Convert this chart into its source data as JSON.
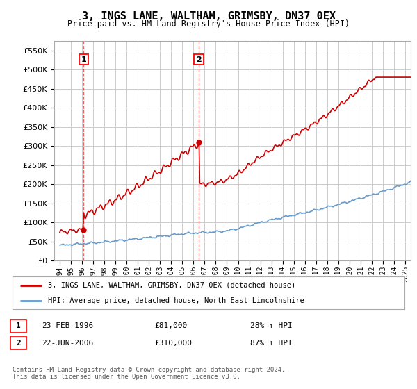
{
  "title": "3, INGS LANE, WALTHAM, GRIMSBY, DN37 0EX",
  "subtitle": "Price paid vs. HM Land Registry's House Price Index (HPI)",
  "legend_line1": "3, INGS LANE, WALTHAM, GRIMSBY, DN37 0EX (detached house)",
  "legend_line2": "HPI: Average price, detached house, North East Lincolnshire",
  "sale1_date": "23-FEB-1996",
  "sale1_price": "£81,000",
  "sale1_hpi": "28% ↑ HPI",
  "sale2_date": "22-JUN-2006",
  "sale2_price": "£310,000",
  "sale2_hpi": "87% ↑ HPI",
  "footer": "Contains HM Land Registry data © Crown copyright and database right 2024.\nThis data is licensed under the Open Government Licence v3.0.",
  "property_color": "#cc0000",
  "hpi_color": "#6699cc",
  "background_color": "#ffffff",
  "grid_color": "#cccccc",
  "ylim": [
    0,
    575000
  ],
  "yticks": [
    0,
    50000,
    100000,
    150000,
    200000,
    250000,
    300000,
    350000,
    400000,
    450000,
    500000,
    550000
  ],
  "xlim_start": 1993.5,
  "xlim_end": 2025.5,
  "sale1_x": 1996.15,
  "sale1_y": 81000,
  "sale2_x": 2006.47,
  "sale2_y": 310000,
  "dashed_line_color": "#cc0000"
}
